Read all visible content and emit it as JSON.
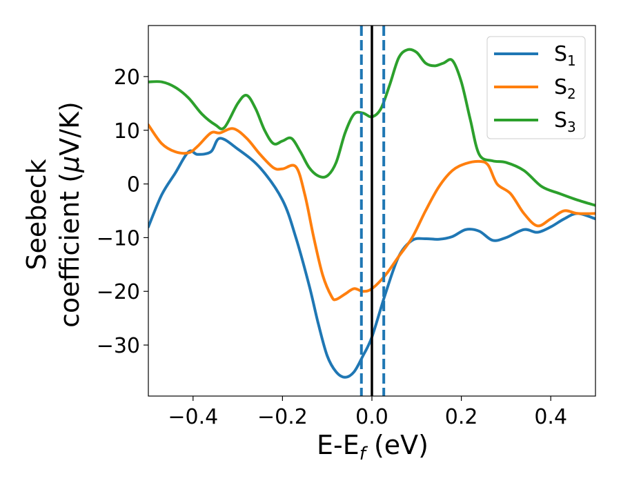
{
  "chart_data": {
    "type": "line",
    "title": "",
    "xlabel": {
      "base": "E-E",
      "sub": "f",
      "tail": " (eV)"
    },
    "ylabel": {
      "line1": "Seebeck",
      "line2": "coefficient  (",
      "mu": "μ",
      "line2_tail": "V/K)"
    },
    "xlim": [
      -0.5,
      0.5
    ],
    "ylim": [
      -39.5,
      29.5
    ],
    "xticks": [
      {
        "value": -0.4,
        "label": "−0.4"
      },
      {
        "value": -0.2,
        "label": "−0.2"
      },
      {
        "value": 0.0,
        "label": "0.0"
      },
      {
        "value": 0.2,
        "label": "0.2"
      },
      {
        "value": 0.4,
        "label": "0.4"
      }
    ],
    "yticks": [
      {
        "value": -30,
        "label": "−30"
      },
      {
        "value": -20,
        "label": "−20"
      },
      {
        "value": -10,
        "label": "−10"
      },
      {
        "value": 0,
        "label": "0"
      },
      {
        "value": 10,
        "label": "10"
      },
      {
        "value": 20,
        "label": "20"
      }
    ],
    "grid": false,
    "legend_position": "top-right",
    "vlines": [
      {
        "x": 0.0,
        "style": "solid",
        "color": "#000000"
      },
      {
        "x": -0.0235,
        "style": "dashed",
        "color": "#1f77b4"
      },
      {
        "x": 0.0265,
        "style": "dashed",
        "color": "#1f77b4"
      }
    ],
    "series": [
      {
        "name": "S",
        "sub": "1",
        "color": "#1f77b4",
        "x": [
          -0.5,
          -0.47,
          -0.44,
          -0.41,
          -0.39,
          -0.36,
          -0.34,
          -0.3,
          -0.25,
          -0.2,
          -0.17,
          -0.14,
          -0.12,
          -0.1,
          -0.08,
          -0.06,
          -0.04,
          -0.02,
          0.0,
          0.03,
          0.06,
          0.09,
          0.12,
          0.15,
          0.18,
          0.21,
          0.24,
          0.27,
          0.3,
          0.34,
          0.37,
          0.4,
          0.43,
          0.46,
          0.5
        ],
        "y": [
          -8.0,
          -2.0,
          2.0,
          6.0,
          5.5,
          6.0,
          8.5,
          6.5,
          3.0,
          -3.0,
          -10.0,
          -19.0,
          -26.0,
          -32.0,
          -35.0,
          -36.0,
          -35.0,
          -32.0,
          -28.5,
          -20.5,
          -13.5,
          -10.5,
          -10.2,
          -10.3,
          -9.8,
          -8.5,
          -8.8,
          -10.5,
          -10.0,
          -8.5,
          -9.0,
          -8.0,
          -6.5,
          -5.5,
          -6.5
        ]
      },
      {
        "name": "S",
        "sub": "2",
        "color": "#ff7f0e",
        "x": [
          -0.5,
          -0.47,
          -0.44,
          -0.41,
          -0.39,
          -0.36,
          -0.34,
          -0.31,
          -0.28,
          -0.25,
          -0.22,
          -0.2,
          -0.17,
          -0.15,
          -0.13,
          -0.11,
          -0.09,
          -0.08,
          -0.06,
          -0.04,
          -0.02,
          0.0,
          0.03,
          0.06,
          0.09,
          0.12,
          0.15,
          0.18,
          0.21,
          0.24,
          0.26,
          0.28,
          0.31,
          0.34,
          0.37,
          0.4,
          0.43,
          0.46,
          0.5
        ],
        "y": [
          11.0,
          7.5,
          6.0,
          5.8,
          7.0,
          9.5,
          9.5,
          10.3,
          8.5,
          5.5,
          3.0,
          2.8,
          3.2,
          -2.0,
          -10.0,
          -17.0,
          -21.0,
          -21.5,
          -20.5,
          -19.5,
          -20.0,
          -19.5,
          -17.0,
          -13.5,
          -10.0,
          -5.0,
          -0.5,
          2.5,
          3.8,
          4.2,
          3.5,
          0.0,
          -1.8,
          -5.5,
          -7.8,
          -6.5,
          -5.0,
          -5.5,
          -5.5
        ]
      },
      {
        "name": "S",
        "sub": "3",
        "color": "#2ca02c",
        "x": [
          -0.5,
          -0.47,
          -0.44,
          -0.41,
          -0.38,
          -0.35,
          -0.33,
          -0.3,
          -0.28,
          -0.26,
          -0.24,
          -0.22,
          -0.2,
          -0.18,
          -0.16,
          -0.14,
          -0.12,
          -0.1,
          -0.08,
          -0.06,
          -0.04,
          -0.02,
          0.0,
          0.02,
          0.04,
          0.06,
          0.08,
          0.1,
          0.12,
          0.14,
          0.16,
          0.18,
          0.2,
          0.22,
          0.24,
          0.27,
          0.3,
          0.34,
          0.38,
          0.42,
          0.46,
          0.5
        ],
        "y": [
          19.0,
          19.0,
          18.0,
          16.0,
          13.0,
          11.0,
          10.5,
          15.0,
          16.5,
          14.0,
          10.0,
          7.5,
          8.0,
          8.5,
          6.0,
          3.0,
          1.5,
          1.5,
          4.0,
          9.5,
          13.0,
          13.2,
          12.5,
          14.0,
          18.5,
          23.5,
          25.0,
          24.5,
          22.5,
          22.0,
          22.5,
          23.0,
          19.0,
          12.0,
          5.5,
          4.3,
          4.0,
          2.5,
          -0.5,
          -1.8,
          -3.0,
          -4.0
        ]
      }
    ]
  }
}
